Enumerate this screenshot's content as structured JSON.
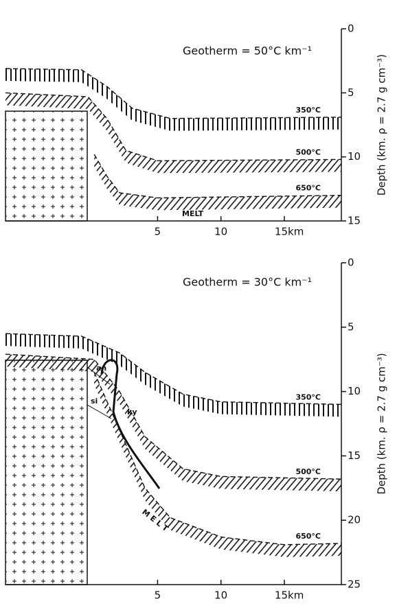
{
  "chart_data": [
    {
      "type": "line",
      "title": "Geotherm = 50°C km⁻¹",
      "y_label": "Depth (km. ρ = 2.7 g cm⁻³)",
      "xlim": [
        -7,
        19.5
      ],
      "xticks": [
        5,
        10,
        {
          "value": 15,
          "label": "15km"
        }
      ],
      "ylim": [
        15,
        0
      ],
      "yticks": [
        0,
        5,
        10,
        15
      ],
      "series": [
        {
          "name": "350°C",
          "color": "#111",
          "x": [
            -7,
            -1,
            1,
            3,
            6,
            19.5
          ],
          "values": [
            3.1,
            3.2,
            4.5,
            6.2,
            7.0,
            6.9
          ]
        },
        {
          "name": "500°C",
          "color": "#111",
          "x": [
            -7,
            -0.5,
            1,
            2.5,
            5,
            19.5
          ],
          "values": [
            5.0,
            5.3,
            7.0,
            9.5,
            10.3,
            10.2
          ]
        },
        {
          "name": "650°C",
          "color": "#111",
          "x": [
            0,
            1,
            2,
            5,
            19.5
          ],
          "values": [
            9.8,
            11.5,
            12.8,
            13.2,
            13.0
          ]
        }
      ],
      "annotations": [
        "MELT"
      ]
    },
    {
      "type": "line",
      "title": "Geotherm = 30°C km⁻¹",
      "y_label": "Depth (km. ρ = 2.7 g cm⁻³)",
      "xlim": [
        -7,
        19.5
      ],
      "xticks": [
        5,
        10,
        {
          "value": 15,
          "label": "15km"
        }
      ],
      "ylim": [
        25,
        0
      ],
      "yticks": [
        0,
        5,
        10,
        15,
        20,
        25
      ],
      "series": [
        {
          "name": "350°C",
          "color": "#111",
          "x": [
            -7,
            -1,
            2,
            4,
            7,
            10,
            19.5
          ],
          "values": [
            5.5,
            5.7,
            7.0,
            8.5,
            10.2,
            10.8,
            11.0
          ]
        },
        {
          "name": "500°C",
          "color": "#111",
          "x": [
            -7,
            0,
            2,
            4,
            7,
            10,
            19.5
          ],
          "values": [
            7.1,
            7.5,
            10.0,
            13.5,
            16.0,
            16.6,
            16.8
          ]
        },
        {
          "name": "650°C",
          "color": "#111",
          "x": [
            0,
            2,
            4,
            6,
            10,
            15,
            19.5
          ],
          "values": [
            8.5,
            13.0,
            17.5,
            19.8,
            21.3,
            21.9,
            21.8
          ]
        }
      ],
      "annotations": [
        "an",
        "si",
        "ky",
        "M E L T"
      ]
    }
  ]
}
